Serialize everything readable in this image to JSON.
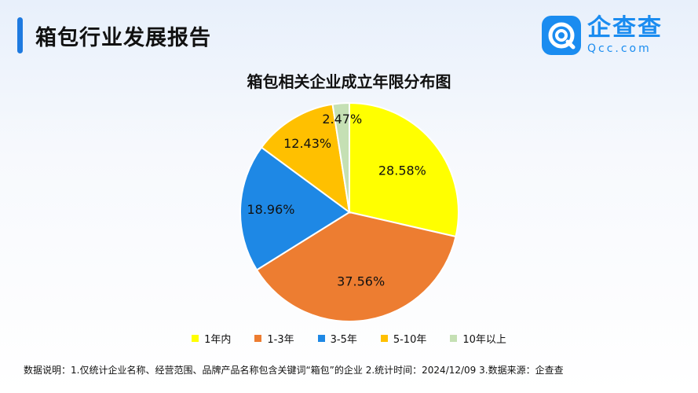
{
  "header": {
    "title": "箱包行业发展报告"
  },
  "logo": {
    "name": "企查查",
    "domain": "Qcc.com",
    "icon": "qcc-logo-icon",
    "color": "#1a8cf0"
  },
  "chart_data": {
    "type": "pie",
    "title": "箱包相关企业成立年限分布图",
    "categories": [
      "1年内",
      "1-3年",
      "3-5年",
      "5-10年",
      "10年以上"
    ],
    "values": [
      28.58,
      37.56,
      18.96,
      12.43,
      2.47
    ],
    "labels": [
      "28.58%",
      "37.56%",
      "18.96%",
      "12.43%",
      "2.47%"
    ],
    "colors": [
      "#ffff00",
      "#ed7d31",
      "#1e88e5",
      "#ffc000",
      "#c5e0b4"
    ],
    "start_angle": "12 o'clock, clockwise",
    "legend_position": "bottom"
  },
  "footnote": "数据说明：1.仅统计企业名称、经营范围、品牌产品名称包含关键词“箱包”的企业   2.统计时间：2024/12/09   3.数据来源：企查查"
}
